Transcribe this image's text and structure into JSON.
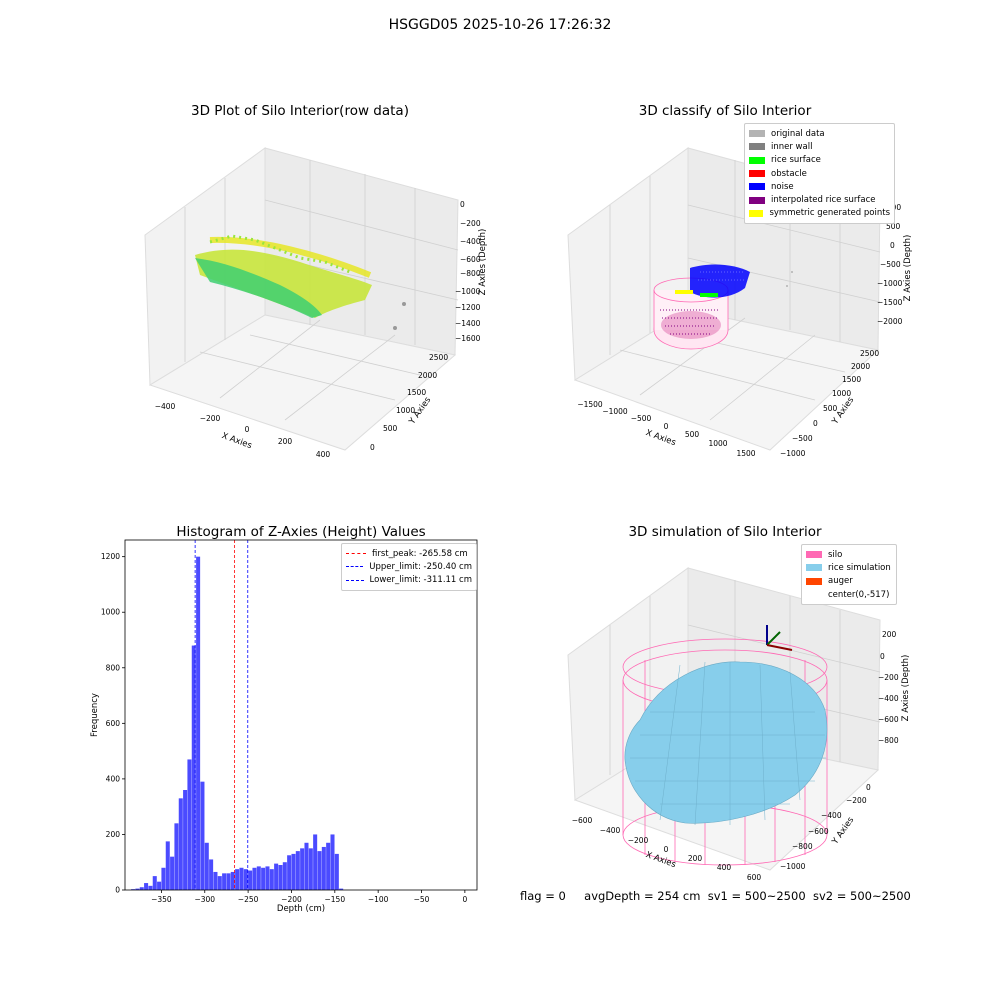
{
  "suptitle": "HSGGD05 2025-10-26 17:26:32",
  "panels": {
    "raw": {
      "title": "3D Plot of Silo Interior(row data)",
      "xlabel": "X Axies",
      "ylabel": "Y Axies",
      "zlabel": "Z Axies (Depth)",
      "x_ticks": [
        "−400",
        "−200",
        "0",
        "200",
        "400"
      ],
      "y_ticks": [
        "0",
        "500",
        "1000",
        "1500",
        "2000",
        "2500"
      ],
      "z_ticks": [
        "0",
        "−200",
        "−400",
        "−600",
        "−800",
        "−1000",
        "−1200",
        "−1400",
        "−1600"
      ]
    },
    "classify": {
      "title": "3D classify of Silo Interior",
      "xlabel": "X Axies",
      "ylabel": "Y Axies",
      "zlabel": "Z Axies (Depth)",
      "x_ticks": [
        "−1500",
        "−1000",
        "−500",
        "0",
        "500",
        "1000",
        "1500"
      ],
      "y_ticks": [
        "−1000",
        "−500",
        "0",
        "500",
        "1000",
        "1500",
        "2000",
        "2500"
      ],
      "z_ticks": [
        "1000",
        "500",
        "0",
        "−500",
        "−1000",
        "−1500",
        "−2000"
      ],
      "legend": [
        {
          "label": "original data",
          "color": "#b3b3b3"
        },
        {
          "label": "inner wall",
          "color": "#808080"
        },
        {
          "label": "rice surface",
          "color": "#00ff00"
        },
        {
          "label": "obstacle",
          "color": "#ff0000"
        },
        {
          "label": "noise",
          "color": "#0000ff"
        },
        {
          "label": "interpolated rice surface",
          "color": "#800080"
        },
        {
          "label": "symmetric generated points",
          "color": "#ffff00"
        }
      ]
    },
    "simulation": {
      "title": "3D simulation of Silo Interior",
      "xlabel": "X Axies",
      "ylabel": "Y Axies",
      "zlabel": "Z Axies (Depth)",
      "x_ticks": [
        "−600",
        "−400",
        "−200",
        "0",
        "200",
        "400",
        "600"
      ],
      "y_ticks": [
        "−1000",
        "−800",
        "−600",
        "−400",
        "−200",
        "0"
      ],
      "z_ticks": [
        "200",
        "0",
        "−200",
        "−400",
        "−600",
        "−800"
      ],
      "legend": [
        {
          "label": "silo",
          "color": "#ff69b4"
        },
        {
          "label": "rice simulation",
          "color": "#87ceeb"
        },
        {
          "label": "auger",
          "color": "#ff4500"
        },
        {
          "label": "center(0,-517)",
          "color": ""
        }
      ]
    }
  },
  "chart_data": {
    "type": "bar",
    "title": "Histogram of Z-Axies (Height) Values",
    "xlabel": "Depth (cm)",
    "ylabel": "Frequency",
    "xlim": [
      -392,
      14
    ],
    "ylim": [
      0,
      1260
    ],
    "x_ticks": [
      -350,
      -300,
      -250,
      -200,
      -150,
      -100,
      -50,
      0
    ],
    "y_ticks": [
      0,
      200,
      400,
      600,
      800,
      1000,
      1200
    ],
    "bin_edges_start": -385,
    "bin_width": 5,
    "values": [
      3,
      5,
      10,
      25,
      15,
      50,
      30,
      80,
      175,
      120,
      240,
      330,
      360,
      470,
      880,
      1200,
      390,
      170,
      110,
      65,
      50,
      60,
      60,
      65,
      75,
      80,
      75,
      70,
      80,
      85,
      80,
      85,
      75,
      95,
      90,
      100,
      125,
      130,
      140,
      150,
      170,
      150,
      200,
      140,
      155,
      170,
      200,
      130,
      5
    ],
    "bar_color": "#4b4bff",
    "lines": [
      {
        "label": "first_peak: -265.58 cm",
        "value": -265.58,
        "color": "#ff0000"
      },
      {
        "label": "Upper_limit: -250.40 cm",
        "value": -250.4,
        "color": "#0000ff"
      },
      {
        "label": "Lower_limit: -311.11 cm",
        "value": -311.11,
        "color": "#0000ff"
      }
    ],
    "legend_position": "top-right"
  },
  "status": {
    "flag": "flag = 0",
    "avg_depth": "avgDepth = 254 cm",
    "sv1": "sv1 = 500~2500",
    "sv2": "sv2 = 500~2500"
  }
}
